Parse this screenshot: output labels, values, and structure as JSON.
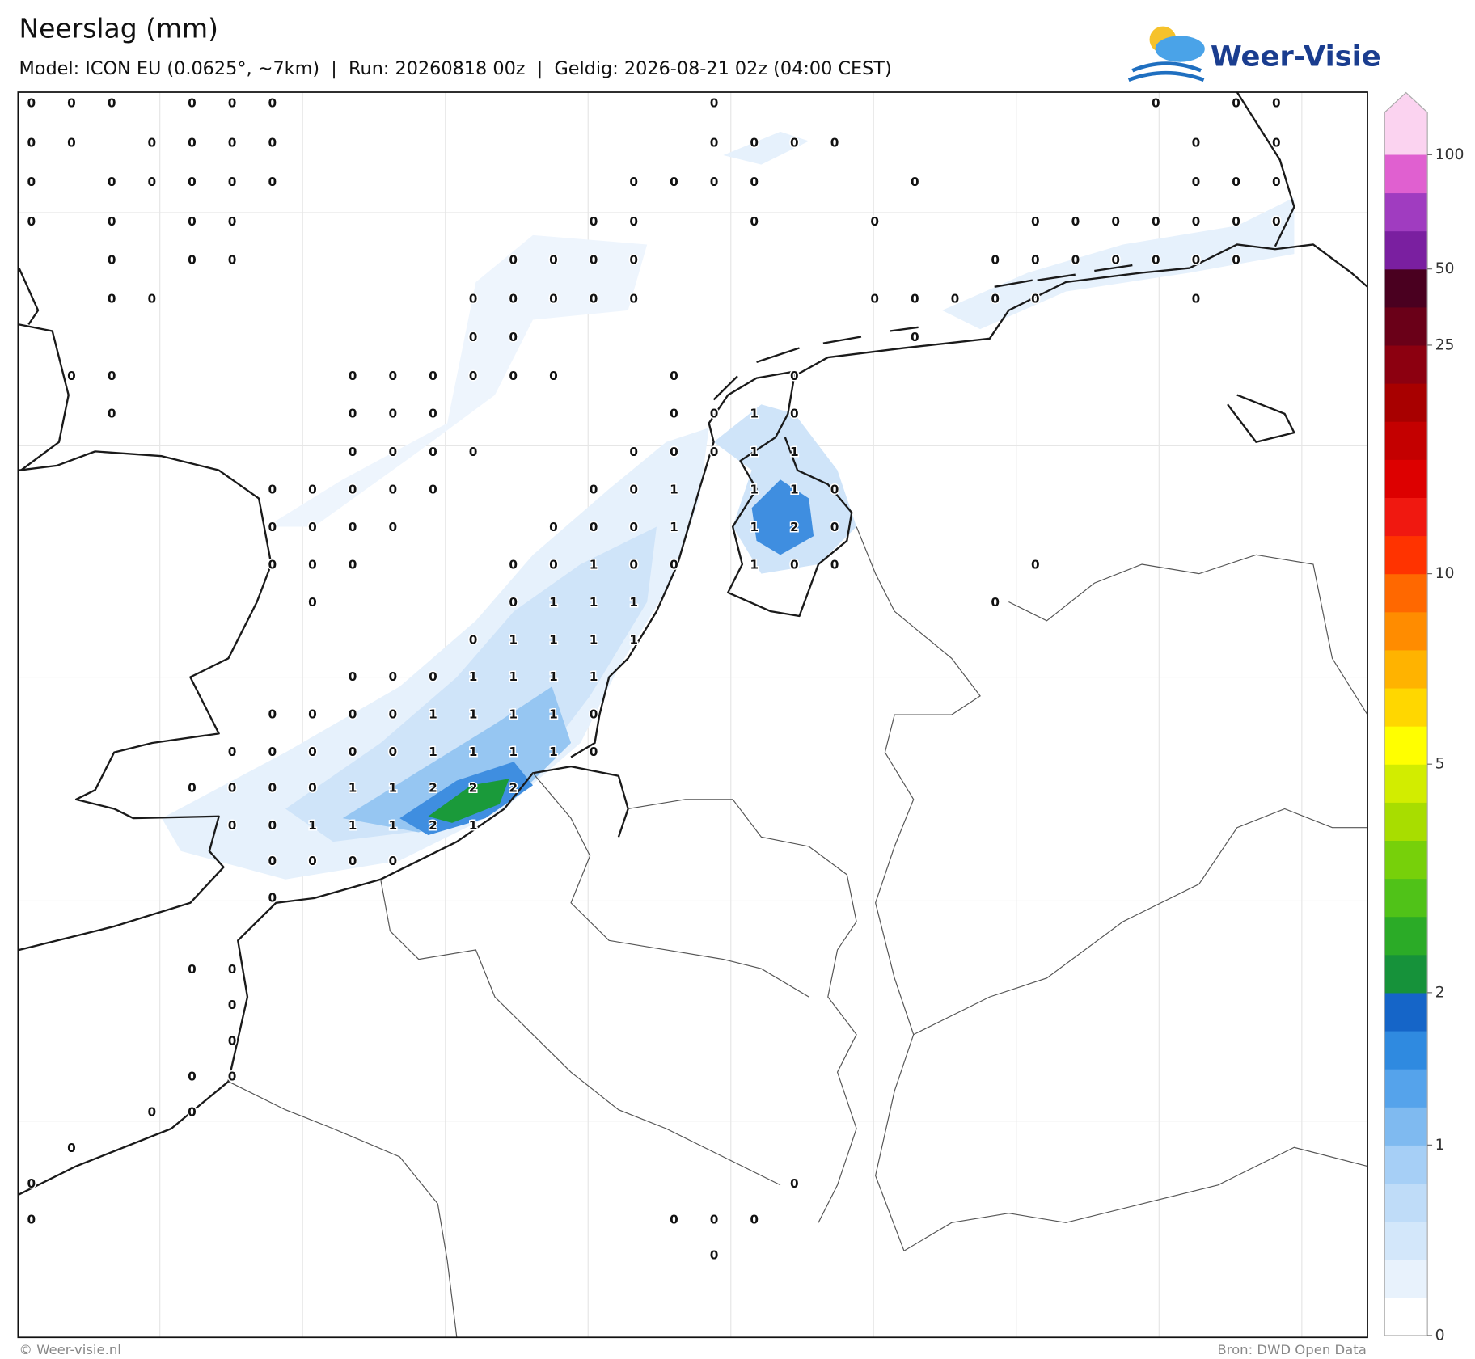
{
  "header": {
    "title": "Neerslag (mm)",
    "subtitle": "Model: ICON EU (0.0625°, ~7km)  |  Run: 20260818 00z  |  Geldig: 2026-08-21 02z (04:00 CEST)"
  },
  "logo": "Weer-Visie",
  "labels": {
    "rows": [
      [
        0,
        0,
        0,
        null,
        0,
        0,
        0,
        null,
        null,
        null,
        null,
        null,
        null,
        null,
        null,
        null,
        null,
        0,
        null,
        null,
        null,
        null,
        null,
        null,
        null,
        null,
        null,
        null,
        0,
        null,
        0,
        0
      ],
      [
        0,
        0,
        null,
        0,
        0,
        0,
        0,
        null,
        null,
        null,
        null,
        null,
        null,
        null,
        null,
        null,
        null,
        0,
        0,
        0,
        0,
        null,
        null,
        null,
        null,
        null,
        null,
        null,
        null,
        0,
        null,
        0
      ],
      [
        0,
        null,
        0,
        0,
        0,
        0,
        0,
        null,
        null,
        null,
        null,
        null,
        null,
        null,
        null,
        0,
        0,
        0,
        0,
        null,
        null,
        null,
        0,
        null,
        null,
        null,
        null,
        null,
        null,
        0,
        0,
        0
      ],
      [
        0,
        null,
        0,
        null,
        0,
        0,
        null,
        null,
        null,
        null,
        null,
        null,
        null,
        null,
        0,
        0,
        null,
        null,
        0,
        null,
        null,
        0,
        null,
        null,
        null,
        0,
        0,
        0,
        0,
        0,
        0,
        0
      ],
      [
        null,
        null,
        0,
        null,
        0,
        0,
        null,
        null,
        null,
        null,
        null,
        null,
        0,
        0,
        0,
        0,
        null,
        null,
        null,
        null,
        null,
        null,
        null,
        null,
        0,
        0,
        0,
        0,
        0,
        0,
        0
      ],
      [
        null,
        null,
        0,
        0,
        null,
        null,
        null,
        null,
        null,
        null,
        null,
        0,
        0,
        0,
        0,
        0,
        null,
        null,
        null,
        null,
        null,
        0,
        0,
        0,
        0,
        0,
        null,
        null,
        null,
        0
      ],
      [
        null,
        null,
        null,
        null,
        null,
        null,
        null,
        null,
        null,
        null,
        null,
        0,
        0,
        null,
        null,
        null,
        null,
        null,
        null,
        null,
        null,
        null,
        0
      ],
      [
        null,
        0,
        0,
        null,
        null,
        null,
        null,
        null,
        0,
        0,
        0,
        0,
        0,
        0,
        null,
        null,
        0,
        null,
        null,
        0
      ],
      [
        null,
        null,
        0,
        null,
        null,
        null,
        null,
        null,
        0,
        0,
        0,
        null,
        null,
        null,
        null,
        null,
        0,
        0,
        1,
        0
      ],
      [
        null,
        null,
        null,
        null,
        null,
        null,
        null,
        null,
        0,
        0,
        0,
        0,
        null,
        null,
        null,
        0,
        0,
        0,
        1,
        1
      ],
      [
        null,
        null,
        null,
        null,
        null,
        null,
        0,
        0,
        0,
        0,
        0,
        null,
        null,
        null,
        0,
        0,
        1,
        null,
        1,
        1,
        0
      ],
      [
        null,
        null,
        null,
        null,
        null,
        null,
        0,
        0,
        0,
        0,
        null,
        null,
        null,
        0,
        0,
        0,
        1,
        null,
        1,
        2,
        0
      ],
      [
        null,
        null,
        null,
        null,
        null,
        null,
        0,
        0,
        0,
        null,
        null,
        null,
        0,
        0,
        1,
        0,
        0,
        null,
        1,
        0,
        0,
        null,
        null,
        null,
        null,
        0
      ],
      [
        null,
        null,
        null,
        null,
        null,
        null,
        null,
        0,
        null,
        null,
        null,
        null,
        0,
        1,
        1,
        1,
        null,
        null,
        null,
        null,
        null,
        null,
        null,
        null,
        0
      ],
      [
        null,
        null,
        null,
        null,
        null,
        null,
        null,
        null,
        null,
        null,
        null,
        0,
        1,
        1,
        1,
        1
      ],
      [
        null,
        null,
        null,
        null,
        null,
        null,
        null,
        null,
        0,
        0,
        0,
        1,
        1,
        1,
        1
      ],
      [
        null,
        null,
        null,
        null,
        null,
        null,
        0,
        0,
        0,
        0,
        1,
        1,
        1,
        1,
        0
      ],
      [
        null,
        null,
        null,
        null,
        null,
        0,
        0,
        0,
        0,
        0,
        1,
        1,
        1,
        1,
        0
      ],
      [
        null,
        null,
        null,
        null,
        0,
        0,
        0,
        0,
        1,
        1,
        2,
        2,
        2
      ],
      [
        null,
        null,
        null,
        null,
        null,
        0,
        0,
        1,
        1,
        1,
        2,
        1
      ],
      [
        null,
        null,
        null,
        null,
        null,
        null,
        0,
        0,
        0,
        0
      ],
      [
        null,
        null,
        null,
        null,
        null,
        null,
        0
      ],
      [],
      [
        null,
        null,
        null,
        null,
        0,
        0
      ],
      [
        null,
        null,
        null,
        null,
        null,
        0
      ],
      [
        null,
        null,
        null,
        null,
        null,
        0
      ],
      [
        null,
        null,
        null,
        null,
        0,
        0
      ],
      [
        null,
        null,
        null,
        0,
        0
      ],
      [
        null,
        0
      ],
      [
        0,
        null,
        null,
        null,
        null,
        null,
        null,
        null,
        null,
        null,
        null,
        null,
        null,
        null,
        null,
        null,
        null,
        null,
        null,
        0
      ],
      [
        0,
        null,
        null,
        null,
        null,
        null,
        null,
        null,
        null,
        null,
        null,
        null,
        null,
        null,
        null,
        null,
        0,
        0,
        0
      ],
      [
        null,
        null,
        null,
        null,
        null,
        null,
        null,
        null,
        null,
        null,
        null,
        null,
        null,
        null,
        null,
        null,
        null,
        0
      ]
    ]
  },
  "colorbar": {
    "ticks": [
      0,
      1,
      2,
      5,
      10,
      25,
      50,
      100
    ],
    "colors": [
      "#ffffff",
      "#e8f2fc",
      "#d3e7fa",
      "#bfdcf8",
      "#a6cff6",
      "#7fbaf0",
      "#55a3eb",
      "#2f8ae0",
      "#1565c8",
      "#16923a",
      "#2bab27",
      "#50c218",
      "#77d00a",
      "#a8dd00",
      "#d2ed00",
      "#ffff00",
      "#ffd700",
      "#ffb300",
      "#ff8c00",
      "#ff6800",
      "#ff3300",
      "#f01810",
      "#dd0000",
      "#c40000",
      "#a80000",
      "#8c0010",
      "#6a0018",
      "#4a0020",
      "#7a1fa0",
      "#a03cc0",
      "#e060d0",
      "#fbd3f0"
    ]
  },
  "footer": {
    "copyright": "© Weer-visie.nl",
    "source": "Bron: DWD Open Data"
  }
}
